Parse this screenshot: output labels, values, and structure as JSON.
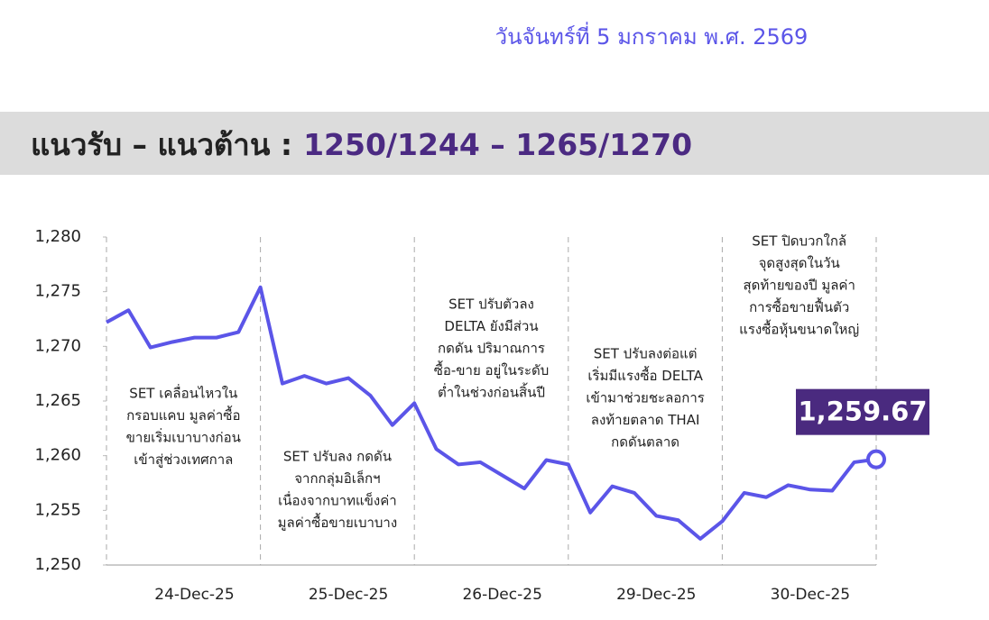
{
  "header": {
    "date": "วันจันทร์ที่ 5 มกราคม พ.ศ. 2569",
    "banner_label": "แนวรับ – แนวต้าน :",
    "banner_levels": "1250/1244 – 1265/1270"
  },
  "chart_data": {
    "type": "line",
    "categories": [
      null,
      null,
      null,
      null,
      "24-Dec-25",
      null,
      null,
      null,
      null,
      null,
      null,
      "25-Dec-25",
      null,
      null,
      null,
      null,
      null,
      null,
      "26-Dec-25",
      null,
      null,
      null,
      null,
      null,
      null,
      "29-Dec-25",
      null,
      null,
      null,
      null,
      null,
      null,
      "30-Dec-25",
      null,
      null,
      null
    ],
    "series": [
      {
        "name": "SET",
        "color": "#5b55e8",
        "values": [
          1272.2,
          1273.3,
          1269.9,
          1270.4,
          1270.8,
          1270.8,
          1271.3,
          1275.4,
          1266.6,
          1267.3,
          1266.6,
          1267.1,
          1265.5,
          1262.8,
          1264.8,
          1260.6,
          1259.2,
          1259.4,
          1258.2,
          1257.0,
          1259.6,
          1259.2,
          1254.8,
          1257.2,
          1256.6,
          1254.5,
          1254.1,
          1252.4,
          1254.0,
          1256.6,
          1256.2,
          1257.3,
          1256.9,
          1256.8,
          1259.4,
          1259.67
        ],
        "value_labels": [
          null,
          null,
          null,
          null,
          null,
          null,
          null,
          null,
          null,
          null,
          null,
          null,
          null,
          null,
          null,
          null,
          null,
          null,
          null,
          null,
          null,
          null,
          null,
          null,
          null,
          null,
          null,
          null,
          null,
          null,
          null,
          null,
          null,
          null,
          null,
          "1,259.67"
        ]
      }
    ],
    "ylim": [
      1250,
      1280
    ],
    "yticks": [
      {
        "value": 1250,
        "label": "1,250"
      },
      {
        "value": 1255,
        "label": "1,255"
      },
      {
        "value": 1260,
        "label": "1,260"
      },
      {
        "value": 1265,
        "label": "1,265"
      },
      {
        "value": 1270,
        "label": "1,270"
      },
      {
        "value": 1275,
        "label": "1,275"
      },
      {
        "value": 1280,
        "label": "1,280"
      }
    ],
    "grid": false,
    "annotations": [
      [
        "SET เคลื่อนไหวใน",
        "กรอบแคบ มูลค่าซื้อ",
        "ขายเริ่มเบาบางก่อน",
        "เข้าสู่ช่วงเทศกาล"
      ],
      [
        "SET ปรับลง กดดัน",
        "จากกลุ่มอิเล็กฯ",
        "เนื่องจากบาทแข็งค่า",
        "มูลค่าซื้อขายเบาบาง"
      ],
      [
        "SET ปรับตัวลง",
        "DELTA ยังมีส่วน",
        "กดดัน ปริมาณการ",
        "ซื้อ-ขาย อยู่ในระดับ",
        "ต่ำในช่วงก่อนสิ้นปี"
      ],
      [
        "SET ปรับลงต่อแต่",
        "เริ่มมีแรงซื้อ DELTA",
        "เข้ามาช่วยชะลอการ",
        "ลงท้ายตลาด THAI",
        "กดดันตลาด"
      ],
      [
        "SET ปิดบวกใกล้",
        "จุดสูงสุดในวัน",
        "สุดท้ายของปี มูลค่า",
        "การซื้อขายฟื้นตัว",
        "แรงซื้อหุ้นขนาดใหญ่"
      ]
    ]
  }
}
